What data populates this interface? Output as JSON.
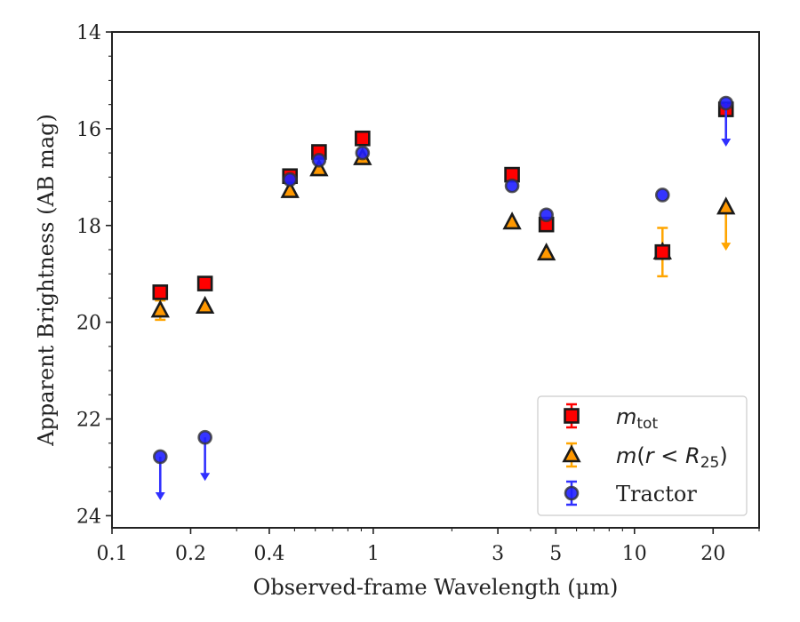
{
  "chart_data": {
    "type": "scatter",
    "xlabel": "Observed-frame Wavelength (μm)",
    "ylabel": "Apparent Brightness (AB mag)",
    "xscale": "log",
    "xlim": [
      0.1,
      30
    ],
    "ylim": [
      24.25,
      14
    ],
    "y_inverted": true,
    "xticks": [
      {
        "value": 0.1,
        "label": "0.1"
      },
      {
        "value": 0.2,
        "label": "0.2"
      },
      {
        "value": 0.4,
        "label": "0.4"
      },
      {
        "value": 1,
        "label": "1"
      },
      {
        "value": 3,
        "label": "3"
      },
      {
        "value": 5,
        "label": "5"
      },
      {
        "value": 10,
        "label": "10"
      },
      {
        "value": 20,
        "label": "20"
      }
    ],
    "yticks": [
      {
        "value": 14,
        "label": "14"
      },
      {
        "value": 16,
        "label": "16"
      },
      {
        "value": 18,
        "label": "18"
      },
      {
        "value": 20,
        "label": "20"
      },
      {
        "value": 22,
        "label": "22"
      },
      {
        "value": 24,
        "label": "24"
      }
    ],
    "legend_position": "lower right",
    "series": [
      {
        "name": "m_tot",
        "marker": "square",
        "face_color": "#ff0000",
        "err_color": "#ff0000",
        "points": [
          {
            "x": 0.153,
            "y": 19.38,
            "err": 0
          },
          {
            "x": 0.227,
            "y": 19.2,
            "err": 0
          },
          {
            "x": 0.48,
            "y": 16.98,
            "err": 0
          },
          {
            "x": 0.62,
            "y": 16.48,
            "err": 0
          },
          {
            "x": 0.91,
            "y": 16.2,
            "err": 0
          },
          {
            "x": 3.4,
            "y": 16.95,
            "err": 0
          },
          {
            "x": 4.6,
            "y": 17.98,
            "err": 0
          },
          {
            "x": 12.8,
            "y": 18.55,
            "err": 0
          },
          {
            "x": 22.4,
            "y": 15.6,
            "err": 0
          }
        ]
      },
      {
        "name": "m(r<R25)",
        "marker": "triangle",
        "face_color": "#ff9800",
        "err_color": "#ffa500",
        "points": [
          {
            "x": 0.153,
            "y": 19.75,
            "err": 0.2
          },
          {
            "x": 0.227,
            "y": 19.67,
            "err": 0
          },
          {
            "x": 0.48,
            "y": 17.28,
            "err": 0
          },
          {
            "x": 0.62,
            "y": 16.83,
            "err": 0
          },
          {
            "x": 0.91,
            "y": 16.6,
            "err": 0
          },
          {
            "x": 3.4,
            "y": 17.93,
            "err": 0
          },
          {
            "x": 4.6,
            "y": 18.57,
            "err": 0
          },
          {
            "x": 12.8,
            "y": 18.55,
            "err": 0.5
          },
          {
            "x": 22.4,
            "y": 17.62,
            "err": 0,
            "upper_limit": true
          }
        ]
      },
      {
        "name": "Tractor",
        "marker": "circle",
        "face_color": "#1f1fff",
        "err_color": "#3030ff",
        "points": [
          {
            "x": 0.153,
            "y": 22.78,
            "err": 0,
            "upper_limit": true
          },
          {
            "x": 0.227,
            "y": 22.38,
            "err": 0,
            "upper_limit": true
          },
          {
            "x": 0.48,
            "y": 17.05,
            "err": 0
          },
          {
            "x": 0.62,
            "y": 16.65,
            "err": 0
          },
          {
            "x": 0.91,
            "y": 16.5,
            "err": 0
          },
          {
            "x": 3.4,
            "y": 17.18,
            "err": 0
          },
          {
            "x": 4.6,
            "y": 17.78,
            "err": 0
          },
          {
            "x": 12.8,
            "y": 17.37,
            "err": 0
          },
          {
            "x": 22.4,
            "y": 15.47,
            "err": 0,
            "upper_limit": true
          }
        ]
      }
    ]
  }
}
